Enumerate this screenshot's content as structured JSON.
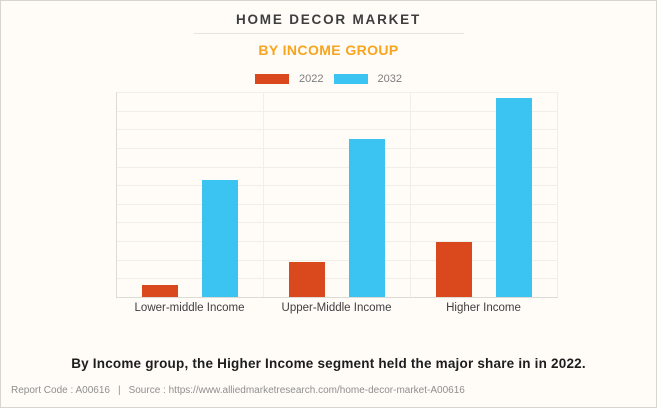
{
  "page": {
    "title": "HOME DECOR MARKET",
    "subtitle": "BY INCOME GROUP",
    "caption": "By Income group, the Higher Income segment held the major share in in 2022."
  },
  "footer": {
    "report_code": "Report Code : A00616",
    "separator": "|",
    "source": "Source : https://www.alliedmarketresearch.com/home-decor-market-A00616"
  },
  "legend": {
    "items": [
      {
        "label": "2022",
        "color": "#d9491d"
      },
      {
        "label": "2032",
        "color": "#3bc4f2"
      }
    ]
  },
  "colors": {
    "title_text": "#3e3e3e",
    "subtitle_text": "#f8a41d",
    "series_2022": "#d9491d",
    "series_2032": "#3bc4f2",
    "background": "#fffcf8",
    "gridline": "#f1ede7"
  },
  "chart_data": {
    "type": "bar",
    "title": "HOME DECOR MARKET",
    "subtitle": "BY INCOME GROUP",
    "categories": [
      "Lower-middle Income",
      "Upper-Middle Income",
      "Higher Income"
    ],
    "series": [
      {
        "name": "2022",
        "color": "#d9491d",
        "values": [
          6,
          17,
          27
        ]
      },
      {
        "name": "2032",
        "color": "#3bc4f2",
        "values": [
          57,
          77,
          97
        ]
      }
    ],
    "xlabel": "",
    "ylabel": "",
    "ylim": [
      0,
      100
    ],
    "y_axis_tick_labels_visible": false,
    "gridline_intervals": 11,
    "grid": true,
    "legend_position": "top",
    "units": "relative bar height, % of chart max (y-axis is unlabeled in source image)"
  }
}
